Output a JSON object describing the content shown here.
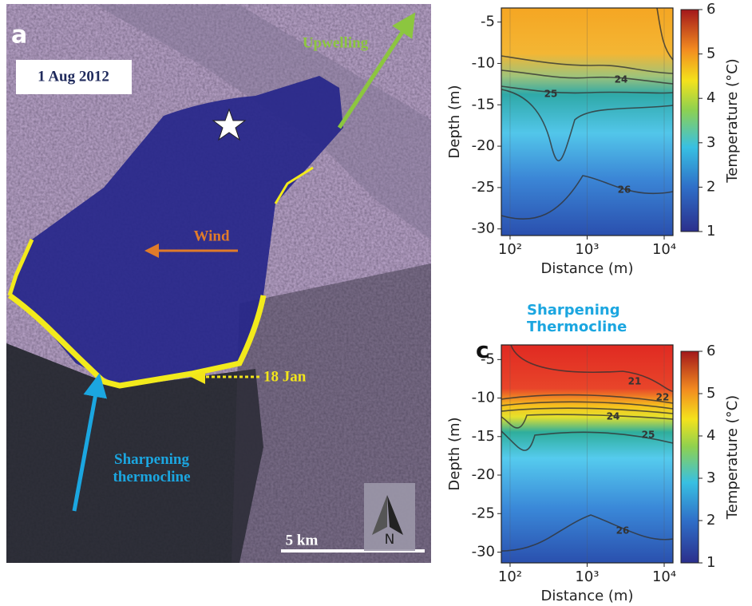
{
  "panel_a": {
    "label": "a",
    "date": "1 Aug 2012",
    "upwelling": "Upwelling",
    "wind": "Wind",
    "jan": "18 Jan",
    "thermocline": "Sharpening thermocline",
    "scale": "5 km",
    "north": "N"
  },
  "chart_data": [
    {
      "type": "contour",
      "xlabel": "Distance (m)",
      "ylabel": "Depth (m)",
      "colorbar_label": "Temperature (°C)",
      "xscale": "log",
      "xlim": [
        77,
        13000
      ],
      "xticks": [
        {
          "value": 100,
          "label": "10²"
        },
        {
          "value": 1000,
          "label": "10³"
        },
        {
          "value": 10000,
          "label": "10⁴"
        }
      ],
      "ylim": [
        -30.8,
        -3.3
      ],
      "yticks": [
        -30,
        -25,
        -20,
        -15,
        -10,
        -5
      ],
      "clim": [
        1,
        6
      ],
      "cticks": [
        1,
        2,
        3,
        4,
        5,
        6
      ],
      "contour_labels": [
        "24",
        "25",
        "26"
      ]
    },
    {
      "type": "contour",
      "panel_label": "c",
      "title": "Sharpening Thermocline",
      "xlabel": "Distance (m)",
      "ylabel": "Depth (m)",
      "colorbar_label": "Temperature (°C)",
      "xscale": "log",
      "xlim": [
        77,
        13000
      ],
      "xticks": [
        {
          "value": 100,
          "label": "10²"
        },
        {
          "value": 1000,
          "label": "10³"
        },
        {
          "value": 10000,
          "label": "10⁴"
        }
      ],
      "ylim": [
        -31.4,
        -3.1
      ],
      "yticks": [
        -30,
        -25,
        -20,
        -15,
        -10,
        -5
      ],
      "clim": [
        1,
        6
      ],
      "cticks": [
        1,
        2,
        3,
        4,
        5,
        6
      ],
      "contour_labels": [
        "21",
        "22",
        "24",
        "25",
        "26"
      ]
    }
  ]
}
